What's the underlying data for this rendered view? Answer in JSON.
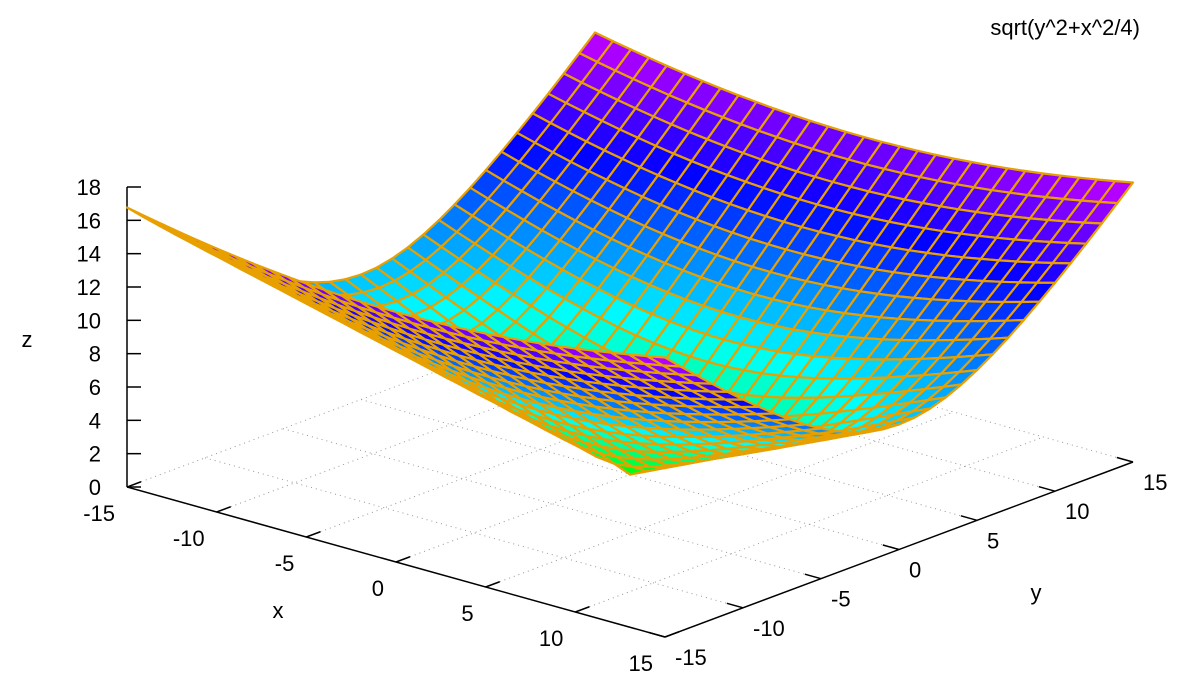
{
  "chart_data": {
    "type": "surface",
    "title": "sqrt(y^2+x^2/4)",
    "function": "sqrt(y^2+x^2/4)",
    "xlabel": "x",
    "ylabel": "y",
    "zlabel": "z",
    "xlim": [
      -15,
      15
    ],
    "ylim": [
      -15,
      15
    ],
    "zlim": [
      0,
      18
    ],
    "x_ticks": [
      "-15",
      "-10",
      "-5",
      "0",
      "5",
      "10",
      "15"
    ],
    "y_ticks": [
      "-15",
      "-10",
      "-5",
      "0",
      "5",
      "10",
      "15"
    ],
    "z_ticks": [
      "0",
      "2",
      "4",
      "6",
      "8",
      "10",
      "12",
      "14",
      "16",
      "18"
    ],
    "grid": true,
    "palette": [
      "#00ff00",
      "#00ffff",
      "#0000ff",
      "#ff00ff"
    ],
    "mesh_color": "#e8a000"
  }
}
